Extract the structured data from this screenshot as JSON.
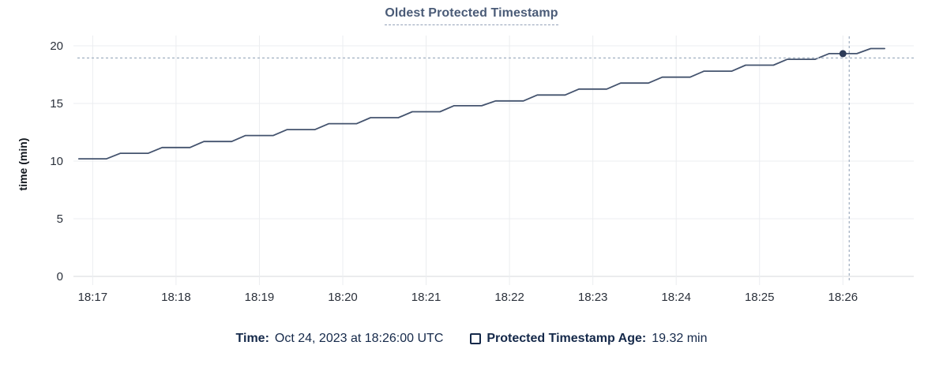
{
  "title": "Oldest Protected Timestamp",
  "footer": {
    "time_label": "Time:",
    "time_value": "Oct 24, 2023 at 18:26:00 UTC",
    "series_label": "Protected Timestamp Age:",
    "series_value": "19.32 min"
  },
  "icons": {
    "series_swatch": "hollow-square"
  },
  "colors": {
    "series_line": "#44536e",
    "hover_dot": "#2c3a57",
    "crosshair": "#a6b4c4",
    "accent_text": "#15294a",
    "title_text": "#4a5b77",
    "grid": "#ebedf0",
    "axis_line": "#d7dade",
    "tick_text": "#2b313b"
  },
  "chart_data": {
    "type": "line",
    "title": "Oldest Protected Timestamp",
    "xlabel": "",
    "ylabel": "time (min)",
    "ylim": [
      0,
      20
    ],
    "yticks": [
      0,
      5,
      10,
      15,
      20
    ],
    "xticks": [
      "18:17",
      "18:18",
      "18:19",
      "18:20",
      "18:21",
      "18:22",
      "18:23",
      "18:24",
      "18:25",
      "18:26"
    ],
    "x_domain": [
      "18:16:49",
      "18:26:51"
    ],
    "grid": true,
    "legend_position": "bottom",
    "hover": {
      "time": "18:26:00",
      "value_min": 19.32,
      "crosshair": true
    },
    "series": [
      {
        "name": "Protected Timestamp Age",
        "unit": "min",
        "x": [
          "18:16:50",
          "18:17:00",
          "18:17:10",
          "18:17:20",
          "18:17:30",
          "18:17:40",
          "18:17:50",
          "18:18:00",
          "18:18:10",
          "18:18:20",
          "18:18:30",
          "18:18:40",
          "18:18:50",
          "18:19:00",
          "18:19:10",
          "18:19:20",
          "18:19:30",
          "18:19:40",
          "18:19:50",
          "18:20:00",
          "18:20:10",
          "18:20:20",
          "18:20:30",
          "18:20:40",
          "18:20:50",
          "18:21:00",
          "18:21:10",
          "18:21:20",
          "18:21:30",
          "18:21:40",
          "18:21:50",
          "18:22:00",
          "18:22:10",
          "18:22:20",
          "18:22:30",
          "18:22:40",
          "18:22:50",
          "18:23:00",
          "18:23:10",
          "18:23:20",
          "18:23:30",
          "18:23:40",
          "18:23:50",
          "18:24:00",
          "18:24:10",
          "18:24:20",
          "18:24:30",
          "18:24:40",
          "18:24:50",
          "18:25:00",
          "18:25:10",
          "18:25:20",
          "18:25:30",
          "18:25:40",
          "18:25:50",
          "18:26:00",
          "18:26:10",
          "18:26:20",
          "18:26:30"
        ],
        "values": [
          10.2,
          10.2,
          10.2,
          10.68,
          10.68,
          10.68,
          11.18,
          11.18,
          11.18,
          11.7,
          11.7,
          11.7,
          12.22,
          12.22,
          12.22,
          12.73,
          12.73,
          12.73,
          13.25,
          13.25,
          13.25,
          13.77,
          13.77,
          13.77,
          14.28,
          14.28,
          14.28,
          14.8,
          14.8,
          14.8,
          15.22,
          15.22,
          15.22,
          15.73,
          15.73,
          15.73,
          16.25,
          16.25,
          16.25,
          16.77,
          16.77,
          16.77,
          17.28,
          17.28,
          17.28,
          17.8,
          17.8,
          17.8,
          18.32,
          18.32,
          18.32,
          18.83,
          18.83,
          18.83,
          19.32,
          19.32,
          19.32,
          19.76,
          19.76
        ]
      }
    ]
  }
}
